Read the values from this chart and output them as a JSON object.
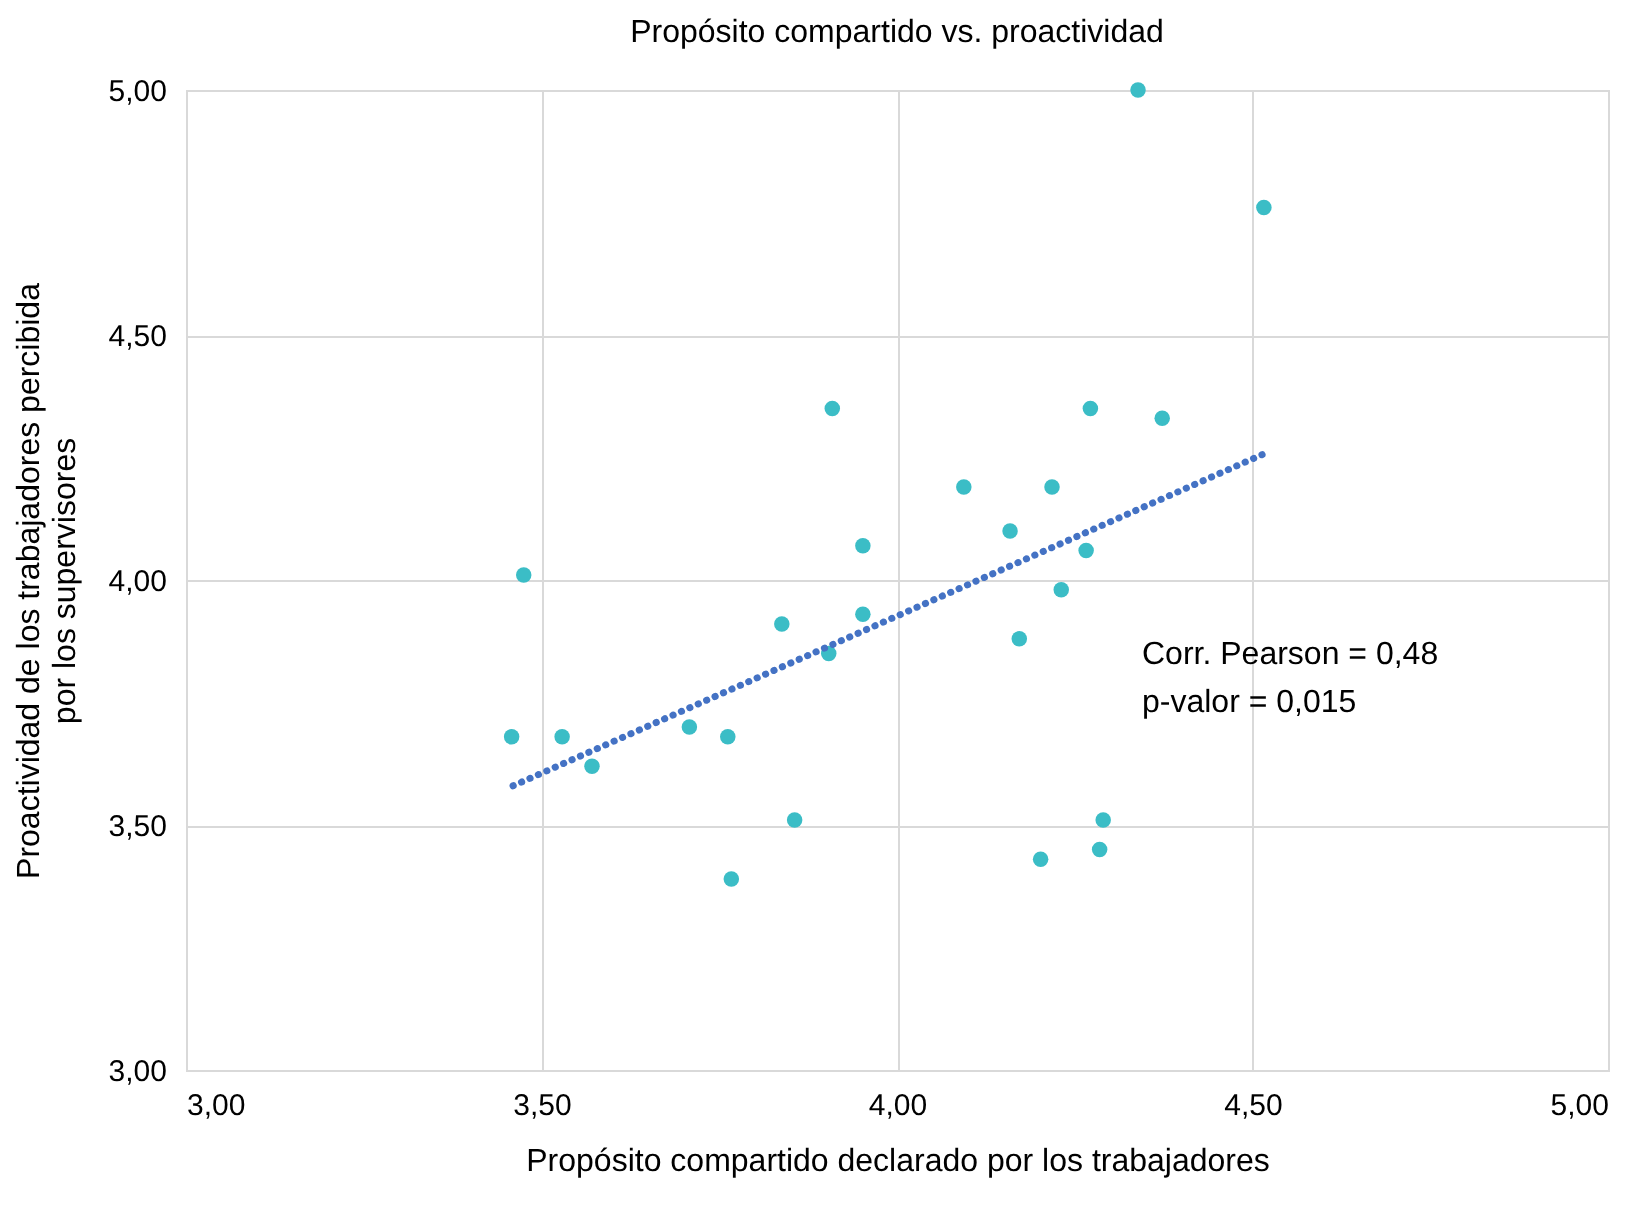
{
  "chart_data": {
    "type": "scatter",
    "title": "Propósito compartido vs. proactividad",
    "xlabel": "Propósito compartido declarado por los trabajadores",
    "ylabel": "Proactividad de los trabajadores percibida\npor los supervisores",
    "x": [
      3.475,
      3.458,
      3.529,
      3.571,
      3.708,
      3.762,
      3.767,
      3.838,
      3.856,
      3.909,
      3.904,
      3.952,
      3.952,
      4.094,
      4.159,
      4.172,
      4.218,
      4.272,
      4.266,
      4.231,
      4.373,
      4.29,
      4.285,
      4.202,
      4.339,
      4.516
    ],
    "series": [
      {
        "color": "#3bbdc6",
        "marker": "circle",
        "values": [
          4.01,
          3.68,
          3.68,
          3.62,
          3.7,
          3.68,
          3.39,
          3.91,
          3.51,
          4.35,
          3.85,
          4.07,
          3.93,
          4.19,
          4.1,
          3.88,
          4.19,
          4.35,
          4.06,
          3.98,
          4.33,
          3.51,
          3.45,
          3.43,
          5.0,
          4.76
        ]
      },
      {
        "type": "line",
        "color": "#4472c4",
        "line_style": "dotted",
        "x": [
          3.46,
          4.52
        ],
        "values": [
          3.58,
          4.26
        ]
      }
    ],
    "xlim": [
      3,
      5
    ],
    "ylim": [
      3,
      5
    ],
    "xticks": [
      {
        "value": 3,
        "label": "3,00"
      },
      {
        "value": 3.5,
        "label": "3,50"
      },
      {
        "value": 4,
        "label": "4,00"
      },
      {
        "value": 4.5,
        "label": "4,50"
      },
      {
        "value": 5,
        "label": "5,00"
      }
    ],
    "yticks": [
      {
        "value": 3,
        "label": "3,00"
      },
      {
        "value": 3.5,
        "label": "3,50"
      },
      {
        "value": 4,
        "label": "4,00"
      },
      {
        "value": 4.5,
        "label": "4,50"
      },
      {
        "value": 5,
        "label": "5,00"
      }
    ],
    "grid": true,
    "annotations": [
      "Corr. Pearson = 0,48",
      "p-valor = 0,015"
    ]
  }
}
